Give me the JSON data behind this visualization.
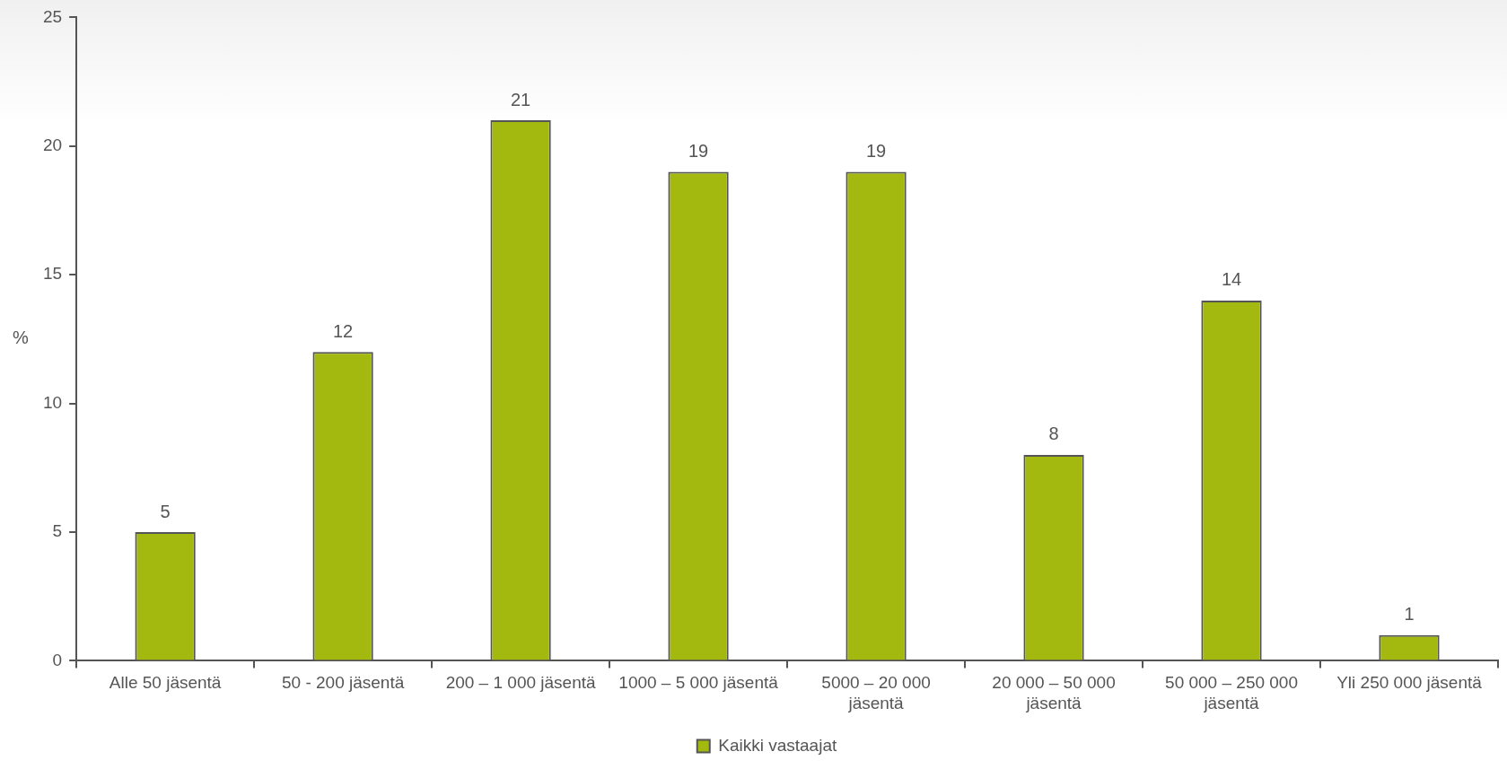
{
  "chart_data": {
    "type": "bar",
    "ylabel": "%",
    "categories": [
      "Alle 50 jäsentä",
      "50 - 200 jäsentä",
      "200 – 1 000 jäsentä",
      "1000 – 5 000 jäsentä",
      "5000 – 20 000 jäsentä",
      "20 000 – 50 000 jäsentä",
      "50 000 – 250 000 jäsentä",
      "Yli 250 000 jäsentä"
    ],
    "series": [
      {
        "name": "Kaikki vastaajat",
        "color": "#a3b90f",
        "values": [
          5,
          12,
          21,
          19,
          19,
          8,
          14,
          1
        ]
      }
    ],
    "ylim": [
      0,
      25
    ],
    "yticks": [
      0,
      5,
      10,
      15,
      20,
      25
    ],
    "data_labels": true,
    "legend": "bottom",
    "grid": false
  }
}
